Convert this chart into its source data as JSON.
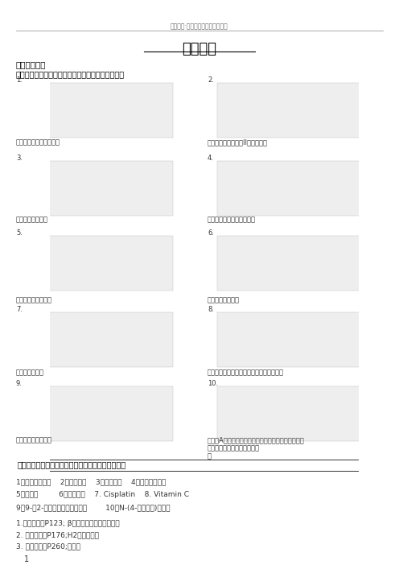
{
  "header_text": "百度文库·让每个人平等地提升自我",
  "title": "药物化学",
  "bg_color": "#ffffff",
  "text_color": "#000000",
  "section1_title": "一、化学结构",
  "section1_sub": "（一）请写出下列结构的药物名称和主要药理作用。",
  "drug_labels": [
    [
      "米非可酮，孕激素拮抗剂",
      "氯沙坦，血管紧张素II受体拮抗剂"
    ],
    [
      "吲哚美辛，抗炎药",
      "酒石酸唑吡坦，镇静催眠药"
    ],
    [
      "头孢噻肟钠，抗生素",
      "氟康唑，抗真菌药"
    ],
    [
      "呋塞米，利尿药",
      "米索前列醇，妊娠早期流产，抑制胃酸分泌"
    ],
    [
      "氟尿嘧啶，抗肿瘤药",
      "维生素A醋酸酯，治疗夜盲症、角膜软化、皮肤干裂、\n粗糙及粘膜抗感染能力低下等\n症"
    ]
  ],
  "section2_title": "（二）请写出下列药物的化学结构和主要药理作用。",
  "section2_items": [
    "1．盐酸普萘洛尔    2．雷尼替丁    3．青霉素钠    4．盐酸环丙沙星",
    "5．雌二醇         6．丙酸睾酮    7. Cisplatin    8. Vitamin C",
    "9．9-（2-羟乙氧基甲基）鸟嘌呤        10．N-(4-羟基苯基)乙酰胺"
  ],
  "section2_answers": [
    "1.化学结构书P123; β受体阻滞剂，抗心绞痛等",
    "2. 化学结构书P176;H2受体拮抗剂",
    "3. 化学结构书P260;抗菌药"
  ],
  "page_num": "1",
  "row_configs": [
    [
      "1.",
      20,
      95,
      172
    ],
    [
      "2.",
      258,
      95,
      172
    ],
    [
      "3.",
      20,
      192,
      268
    ],
    [
      "4.",
      258,
      192,
      268
    ],
    [
      "5.",
      20,
      285,
      368
    ],
    [
      "6.",
      258,
      285,
      368
    ],
    [
      "7.",
      20,
      380,
      458
    ],
    [
      "8.",
      258,
      380,
      458
    ],
    [
      "9.",
      20,
      472,
      542
    ],
    [
      "10.",
      258,
      472,
      542
    ]
  ]
}
